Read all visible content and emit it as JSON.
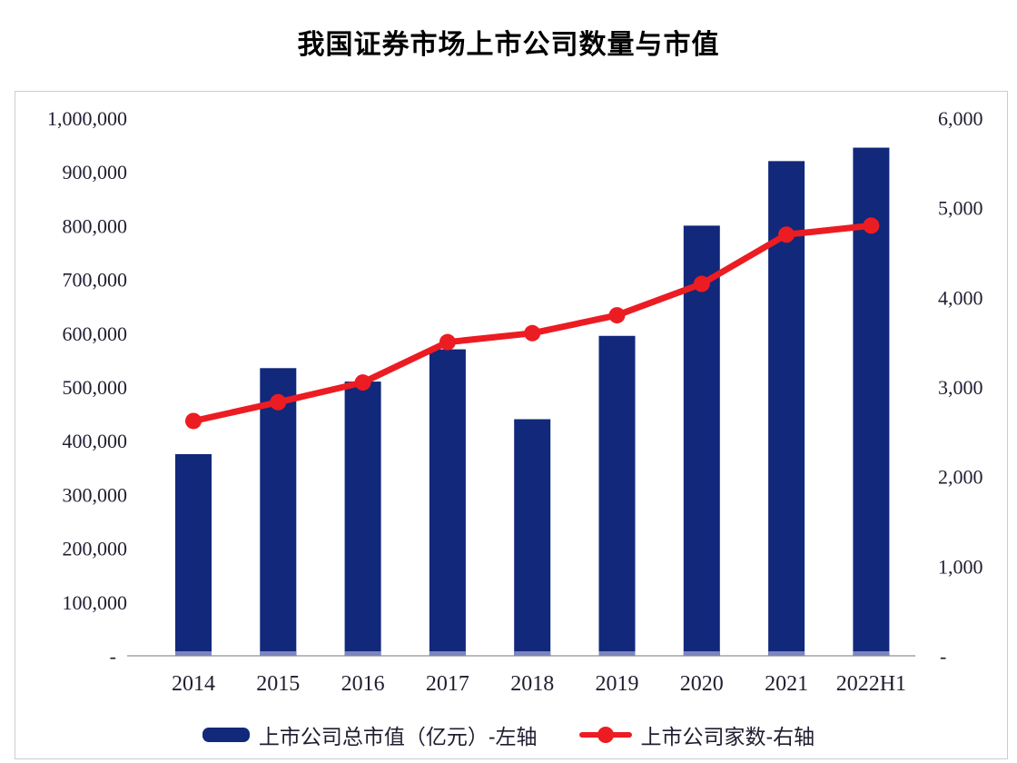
{
  "title": "我国证券市场上市公司数量与市值",
  "colors": {
    "bar": "#11287b",
    "bar_base_cap": "#7d85bd",
    "line": "#ec1c23",
    "axis_line": "#a0a4ac",
    "frame_border": "#c9cdd3",
    "text": "#1e1e30"
  },
  "chart_data": {
    "type": "bar",
    "subtype": "combo-bar-line-dual-axis",
    "title": "我国证券市场上市公司数量与市值",
    "categories": [
      "2014",
      "2015",
      "2016",
      "2017",
      "2018",
      "2019",
      "2020",
      "2021",
      "2022H1"
    ],
    "series": [
      {
        "name": "上市公司总市值（亿元）-左轴",
        "type": "bar",
        "axis": "left",
        "values": [
          375000,
          535000,
          510000,
          570000,
          440000,
          595000,
          800000,
          920000,
          945000
        ]
      },
      {
        "name": "上市公司家数-右轴",
        "type": "line",
        "axis": "right",
        "values": [
          2620,
          2830,
          3050,
          3500,
          3600,
          3800,
          4150,
          4700,
          4800
        ]
      }
    ],
    "left_axis": {
      "min": 0,
      "max": 1000000,
      "step": 100000,
      "tick_labels": [
        "-",
        "100,000",
        "200,000",
        "300,000",
        "400,000",
        "500,000",
        "600,000",
        "700,000",
        "800,000",
        "900,000",
        "1,000,000"
      ]
    },
    "right_axis": {
      "min": 0,
      "max": 6000,
      "step": 1000,
      "tick_labels": [
        "-",
        "1,000",
        "2,000",
        "3,000",
        "4,000",
        "5,000",
        "6,000"
      ]
    },
    "grid": "off",
    "legend_position": "bottom"
  }
}
